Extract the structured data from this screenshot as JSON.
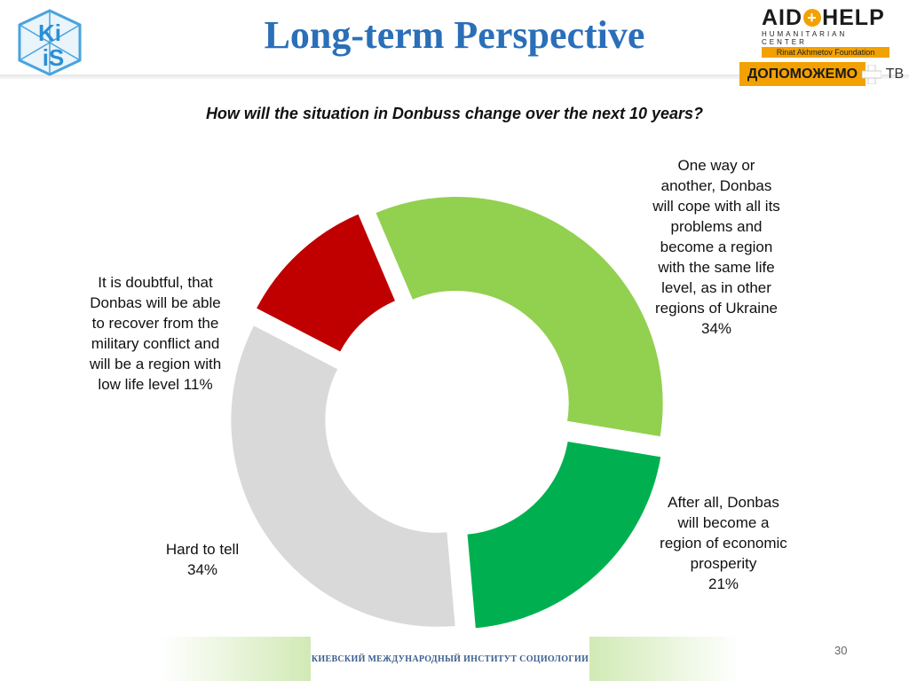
{
  "header": {
    "title": "Long-term Perspective",
    "kiis_logo_text_top": "Ki",
    "kiis_logo_text_bottom": "iS",
    "aid_help": {
      "left_word": "AID",
      "right_word": "HELP",
      "subtitle": "HUMANITARIAN CENTER",
      "foundation": "Rinat Akhmetov Foundation"
    },
    "dopomozhemo": {
      "left_text": "ДОПОМОЖЕМО",
      "right_text": "ТВ"
    },
    "colors": {
      "title": "#2a6fb8",
      "accent_orange": "#f2a100"
    }
  },
  "question": "How will the situation in Donbuss change over the next 10 years?",
  "chart_data": {
    "type": "pie",
    "style": "donut-exploded",
    "question": "How will the situation in Donbuss change over the next 10 years?",
    "slices": [
      {
        "label": "One way or another, Donbas will cope with all its problems and become a region with the same life level, as in other regions of Ukraine",
        "value": 34,
        "value_label": "34%",
        "color": "#92d050"
      },
      {
        "label": "After all, Donbas will become a region of economic prosperity",
        "value": 21,
        "value_label": "21%",
        "color": "#00b050"
      },
      {
        "label": "Hard to tell",
        "value": 34,
        "value_label": "34%",
        "color": "#d9d9d9"
      },
      {
        "label": "It is doubtful, that Donbas will be able to recover from the military conflict and will be a region with low life level",
        "value": 11,
        "value_label": "11%",
        "color": "#c00000"
      }
    ]
  },
  "labels": {
    "slice0_lines": [
      "One way or",
      "another, Donbas",
      "will cope with all its",
      "problems and",
      "become a region",
      "with the same life",
      "level, as in other",
      "regions of Ukraine",
      "34%"
    ],
    "slice1_lines": [
      "After all, Donbas",
      "will become a",
      "region of economic",
      "prosperity",
      "21%"
    ],
    "slice2_lines": [
      "Hard to tell",
      "34%"
    ],
    "slice3_lines": [
      "It is doubtful, that",
      "Donbas will be able",
      "to recover from the",
      "military conflict and",
      "will be a region with",
      "low life level 11%"
    ]
  },
  "footer": {
    "institute": "КИЕВСКИЙ МЕЖДУНАРОДНЫЙ ИНСТИТУТ СОЦИОЛОГИИ",
    "page_number": "30"
  }
}
